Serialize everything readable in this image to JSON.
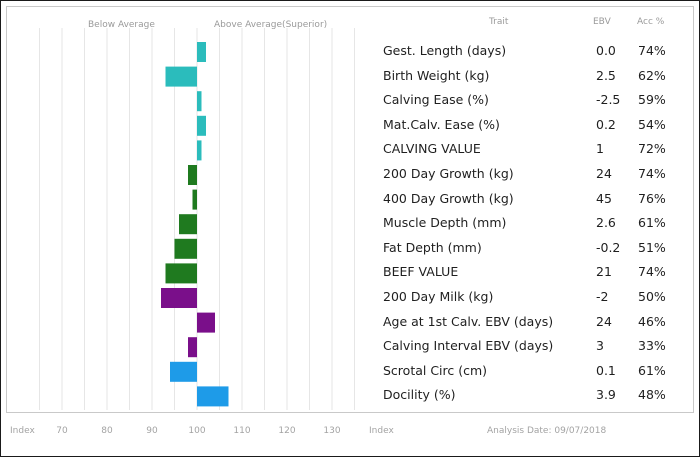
{
  "header": {
    "below_label": "Below Average",
    "above_label": "Above Average(Superior)",
    "trait_col": "Trait",
    "ebv_col": "EBV",
    "acc_col": "Acc %"
  },
  "footer": {
    "index_left": "Index",
    "index_right": "Index",
    "analysis_date": "Analysis Date: 09/07/2018"
  },
  "chart_data": {
    "type": "bar",
    "orientation": "horizontal",
    "xlim": [
      60,
      140
    ],
    "center": 100,
    "xticks": [
      "70",
      "80",
      "90",
      "100",
      "110",
      "120",
      "130"
    ],
    "grid": true,
    "categories": [
      "Gest. Length (days)",
      "Birth Weight (kg)",
      "Calving Ease (%)",
      "Mat.Calv. Ease (%)",
      "CALVING VALUE",
      "200 Day Growth (kg)",
      "400 Day Growth (kg)",
      "Muscle Depth (mm)",
      "Fat Depth (mm)",
      "BEEF VALUE",
      "200 Day Milk (kg)",
      "Age at 1st Calv. EBV (days)",
      "Calving Interval EBV (days)",
      "Scrotal Circ (cm)",
      "Docility (%)"
    ],
    "values": [
      102,
      93,
      101,
      102,
      101,
      98,
      99,
      96,
      95,
      93,
      92,
      104,
      98,
      94,
      107
    ],
    "ebv": [
      "0.0",
      "2.5",
      "-2.5",
      "0.2",
      "1",
      "24",
      "45",
      "2.6",
      "-0.2",
      "21",
      "-2",
      "24",
      "3",
      "0.1",
      "3.9"
    ],
    "acc": [
      "74%",
      "62%",
      "59%",
      "54%",
      "72%",
      "74%",
      "76%",
      "61%",
      "51%",
      "74%",
      "50%",
      "46%",
      "33%",
      "61%",
      "48%"
    ],
    "colors": [
      "#2bbcbc",
      "#2bbcbc",
      "#2bbcbc",
      "#2bbcbc",
      "#2bbcbc",
      "#1f7a1f",
      "#1f7a1f",
      "#1f7a1f",
      "#1f7a1f",
      "#1f7a1f",
      "#7a0f8a",
      "#7a0f8a",
      "#7a0f8a",
      "#1e9be8",
      "#1e9be8"
    ]
  }
}
